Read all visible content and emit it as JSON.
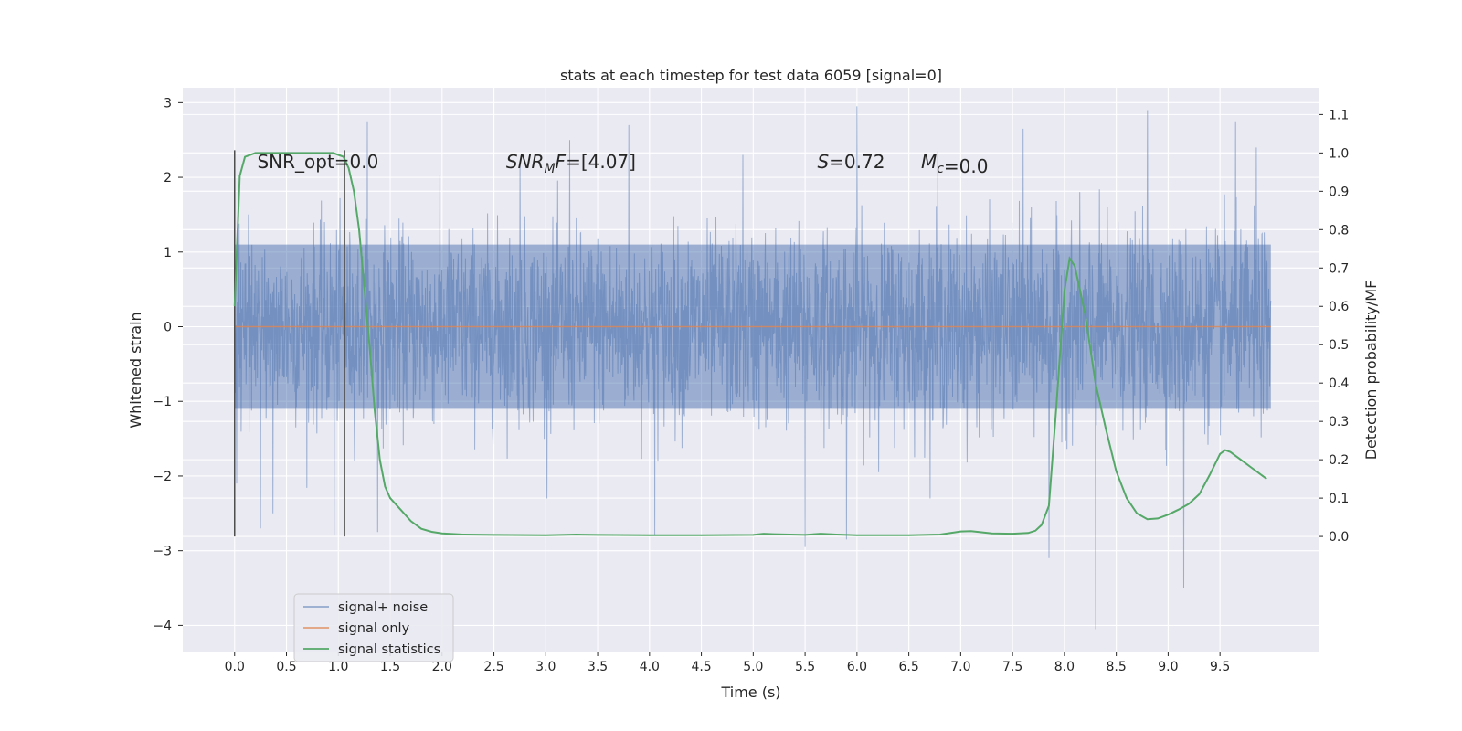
{
  "chart_data": {
    "type": "line",
    "title": "stats at each timestep for test data 6059 [signal=0]",
    "xlabel": "Time (s)",
    "ylabel": "Whitened strain",
    "y2label": "Detection probability/MF",
    "xlim": [
      -0.5,
      10.45
    ],
    "ylim": [
      -4.35,
      3.2
    ],
    "y2lim": [
      -0.3,
      1.17
    ],
    "x_ticks": [
      "0.0",
      "0.5",
      "1.0",
      "1.5",
      "2.0",
      "2.5",
      "3.0",
      "3.5",
      "4.0",
      "4.5",
      "5.0",
      "5.5",
      "6.0",
      "6.5",
      "7.0",
      "7.5",
      "8.0",
      "8.5",
      "9.0",
      "9.5"
    ],
    "y_ticks": [
      "3",
      "2",
      "1",
      "0",
      "−1",
      "−2",
      "−3",
      "−4"
    ],
    "y2_ticks": [
      "1.1",
      "1.0",
      "0.9",
      "0.8",
      "0.7",
      "0.6",
      "0.5",
      "0.4",
      "0.3",
      "0.2",
      "0.1",
      "0.0"
    ],
    "grid": true,
    "legend_position": "lower-left",
    "annotations": [
      {
        "x": 0.2,
        "text": "SNR_opt=0.0"
      },
      {
        "x": 2.6,
        "text": "SNR_M F=[4.07]",
        "italic_part": "SNR",
        "sub": "M",
        "italic_after": "F",
        "rest": "=[4.07]"
      },
      {
        "x": 5.6,
        "text": "S=0.72",
        "italic_part": "S",
        "rest": "=0.72"
      },
      {
        "x": 6.6,
        "text": "M_c=0.0",
        "italic_part": "M",
        "sub": "c",
        "rest": "=0.0"
      }
    ],
    "vlines": [
      0.0,
      1.06
    ],
    "series": [
      {
        "name": "signal+ noise",
        "color": "#4c72b0",
        "axis": "left",
        "x_range": [
          0.0,
          9.99
        ],
        "typical_range": [
          -1.1,
          1.1
        ],
        "peaks": [
          {
            "x": 0.02,
            "y": 1.9
          },
          {
            "x": 0.02,
            "y": -2.1
          },
          {
            "x": 0.25,
            "y": -2.7
          },
          {
            "x": 0.37,
            "y": -2.5
          },
          {
            "x": 0.96,
            "y": -2.8
          },
          {
            "x": 1.28,
            "y": 2.75
          },
          {
            "x": 1.38,
            "y": -2.75
          },
          {
            "x": 2.75,
            "y": 2.2
          },
          {
            "x": 3.23,
            "y": 2.5
          },
          {
            "x": 3.8,
            "y": 2.7
          },
          {
            "x": 4.05,
            "y": -2.8
          },
          {
            "x": 4.9,
            "y": 2.3
          },
          {
            "x": 5.5,
            "y": -2.95
          },
          {
            "x": 5.9,
            "y": -2.85
          },
          {
            "x": 6.0,
            "y": 2.95
          },
          {
            "x": 6.78,
            "y": 2.35
          },
          {
            "x": 7.6,
            "y": 2.65
          },
          {
            "x": 7.85,
            "y": -3.1
          },
          {
            "x": 8.3,
            "y": -4.05
          },
          {
            "x": 8.8,
            "y": 2.9
          },
          {
            "x": 9.15,
            "y": -3.5
          },
          {
            "x": 9.65,
            "y": 2.75
          },
          {
            "x": 9.85,
            "y": 2.4
          }
        ]
      },
      {
        "name": "signal only",
        "color": "#dd8452",
        "axis": "left",
        "x": [
          0.0,
          9.99
        ],
        "y": [
          0.0,
          0.0
        ]
      },
      {
        "name": "signal statistics",
        "color": "#55a868",
        "axis": "right",
        "x": [
          0.0,
          0.05,
          0.1,
          0.15,
          0.2,
          0.3,
          0.5,
          0.7,
          0.85,
          0.95,
          1.0,
          1.05,
          1.1,
          1.15,
          1.2,
          1.25,
          1.3,
          1.35,
          1.4,
          1.45,
          1.5,
          1.6,
          1.7,
          1.8,
          1.9,
          2.0,
          2.2,
          2.5,
          3.0,
          3.3,
          3.5,
          4.0,
          4.5,
          5.0,
          5.1,
          5.2,
          5.5,
          5.65,
          5.8,
          6.0,
          6.5,
          6.8,
          7.0,
          7.1,
          7.3,
          7.5,
          7.65,
          7.72,
          7.78,
          7.85,
          7.92,
          8.0,
          8.05,
          8.1,
          8.2,
          8.3,
          8.4,
          8.5,
          8.6,
          8.7,
          8.8,
          8.9,
          9.0,
          9.1,
          9.2,
          9.3,
          9.4,
          9.5,
          9.55,
          9.6,
          9.7,
          9.8,
          9.9,
          9.95
        ],
        "y": [
          0.6,
          0.94,
          0.99,
          0.995,
          1.0,
          1.0,
          1.0,
          1.0,
          1.0,
          1.0,
          0.995,
          0.99,
          0.96,
          0.9,
          0.8,
          0.65,
          0.5,
          0.33,
          0.2,
          0.13,
          0.1,
          0.07,
          0.04,
          0.02,
          0.012,
          0.008,
          0.005,
          0.004,
          0.003,
          0.005,
          0.004,
          0.003,
          0.003,
          0.004,
          0.007,
          0.006,
          0.004,
          0.007,
          0.005,
          0.003,
          0.003,
          0.005,
          0.013,
          0.014,
          0.008,
          0.007,
          0.009,
          0.015,
          0.03,
          0.08,
          0.33,
          0.64,
          0.725,
          0.705,
          0.58,
          0.4,
          0.28,
          0.17,
          0.1,
          0.06,
          0.045,
          0.047,
          0.057,
          0.07,
          0.085,
          0.11,
          0.16,
          0.215,
          0.225,
          0.22,
          0.2,
          0.18,
          0.16,
          0.15
        ]
      }
    ]
  }
}
